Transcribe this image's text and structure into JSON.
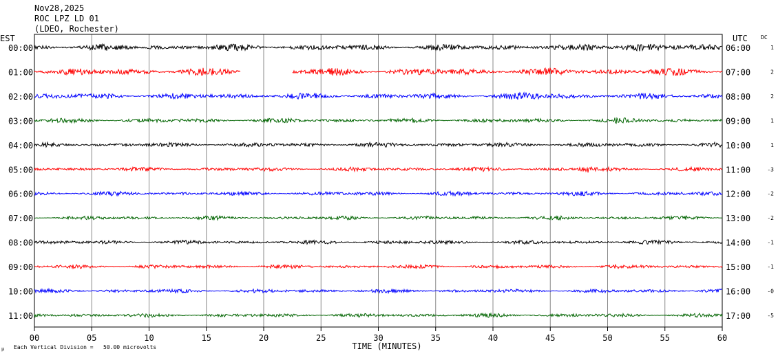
{
  "header": {
    "date": "Nov28,2025",
    "station": "ROC LPZ LD 01",
    "network": "(LDEO, Rochester)"
  },
  "labels": {
    "left_tz": "EST",
    "right_tz": "UTC",
    "dc_header": "DC",
    "x_axis_title": "TIME (MINUTES)",
    "footer_left": "µ",
    "footer_text": "Each Vertical Division =   50.00 microvolts"
  },
  "colors": {
    "trace_cycle": [
      "#000000",
      "#ff0000",
      "#0000ff",
      "#006400"
    ],
    "grid": "#888888",
    "frame": "#000000",
    "text": "#000000"
  },
  "chart_data": {
    "type": "line",
    "title": "ROC LPZ LD 01",
    "xlabel": "TIME (MINUTES)",
    "xlim": [
      0,
      60
    ],
    "x_ticks": [
      "00",
      "05",
      "10",
      "15",
      "20",
      "25",
      "30",
      "35",
      "40",
      "45",
      "50",
      "55",
      "60"
    ],
    "vertical_division_microvolts": 50.0,
    "grid": true,
    "rows": [
      {
        "est": "00:00",
        "utc": "06:00",
        "dc": "1",
        "amplitude": 3.6,
        "events": [
          {
            "minute": 51.5,
            "width": 4,
            "gain": 2.2
          }
        ]
      },
      {
        "est": "01:00",
        "utc": "07:00",
        "dc": "2",
        "amplitude": 4.2,
        "events": [
          {
            "minute": 0.8,
            "width": 1.2,
            "gain": 2.0
          }
        ],
        "gaps": [
          [
            18.0,
            22.5
          ]
        ]
      },
      {
        "est": "02:00",
        "utc": "08:00",
        "dc": "2",
        "amplitude": 3.4,
        "events": [
          {
            "minute": 43.5,
            "width": 4,
            "gain": 1.5
          }
        ]
      },
      {
        "est": "03:00",
        "utc": "09:00",
        "dc": "1",
        "amplitude": 2.6,
        "events": [
          {
            "minute": 51.0,
            "width": 1.5,
            "gain": 1.5
          }
        ]
      },
      {
        "est": "04:00",
        "utc": "10:00",
        "dc": "1",
        "amplitude": 2.6,
        "events": []
      },
      {
        "est": "05:00",
        "utc": "11:00",
        "dc": "-3",
        "amplitude": 2.4,
        "events": [
          {
            "minute": 48.2,
            "width": 0.8,
            "gain": 3.0
          }
        ]
      },
      {
        "est": "06:00",
        "utc": "12:00",
        "dc": "-2",
        "amplitude": 2.4,
        "events": []
      },
      {
        "est": "07:00",
        "utc": "13:00",
        "dc": "-2",
        "amplitude": 2.2,
        "events": []
      },
      {
        "est": "08:00",
        "utc": "14:00",
        "dc": "-1",
        "amplitude": 2.2,
        "events": []
      },
      {
        "est": "09:00",
        "utc": "15:00",
        "dc": "-1",
        "amplitude": 2.2,
        "events": []
      },
      {
        "est": "10:00",
        "utc": "16:00",
        "dc": "-0",
        "amplitude": 2.2,
        "events": []
      },
      {
        "est": "11:00",
        "utc": "17:00",
        "dc": "-5",
        "amplitude": 2.2,
        "events": []
      }
    ]
  }
}
